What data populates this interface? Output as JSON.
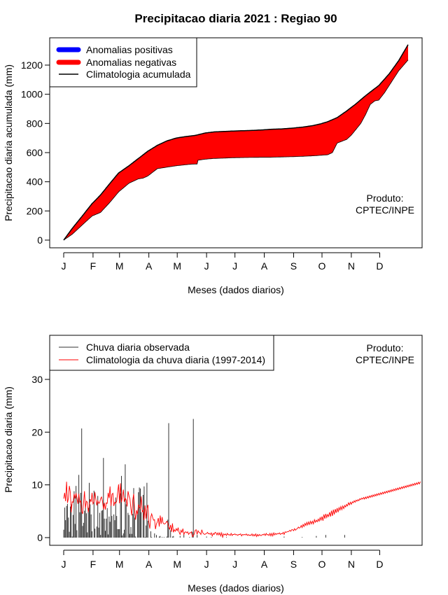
{
  "colors": {
    "positive": "#0000FF",
    "negative": "#FF0000",
    "climatology_line": "#000000",
    "observed_bars": "#333333",
    "climatology_daily": "#FF0000"
  },
  "chart_data": [
    {
      "type": "area",
      "title": "Precipitacao diaria 2021 : Regiao 90",
      "xlabel": "Meses (dados diarios)",
      "ylabel": "Precipitacao diaria acumulada (mm)",
      "xlim": [
        1,
        365
      ],
      "ylim": [
        0,
        1350
      ],
      "yticks": [
        0,
        200,
        400,
        600,
        800,
        1000,
        1200
      ],
      "ytick_labels": [
        "0",
        "200",
        "400",
        "600",
        "800",
        "1000",
        "1200"
      ],
      "month_labels": [
        "J",
        "F",
        "M",
        "A",
        "M",
        "J",
        "J",
        "A",
        "S",
        "O",
        "N",
        "D"
      ],
      "month_days": [
        1,
        32,
        60,
        91,
        121,
        152,
        182,
        213,
        244,
        274,
        305,
        335
      ],
      "legend": {
        "position": "top-left",
        "entries": [
          "Anomalias positivas",
          "Anomalias negativas",
          "Climatologia acumulada"
        ]
      },
      "annotation": [
        "Produto:",
        "CPTEC/INPE"
      ],
      "climatology_cumulative": {
        "x": [
          1,
          10,
          20,
          31,
          40,
          50,
          59,
          70,
          80,
          90,
          100,
          110,
          120,
          130,
          140,
          151,
          160,
          170,
          181,
          190,
          200,
          212,
          220,
          230,
          243,
          255,
          265,
          273,
          280,
          290,
          300,
          310,
          320,
          334,
          345,
          355,
          365
        ],
        "y": [
          0,
          80,
          160,
          250,
          310,
          390,
          460,
          510,
          560,
          610,
          650,
          680,
          700,
          710,
          718,
          735,
          742,
          745,
          748,
          750,
          752,
          756,
          760,
          762,
          768,
          776,
          786,
          798,
          812,
          840,
          885,
          935,
          990,
          1060,
          1140,
          1230,
          1340
        ]
      },
      "observed_cumulative": {
        "x": [
          1,
          10,
          20,
          31,
          40,
          50,
          59,
          70,
          80,
          85,
          90,
          100,
          110,
          120,
          135,
          142,
          143,
          151,
          160,
          170,
          181,
          190,
          200,
          212,
          220,
          230,
          243,
          255,
          265,
          273,
          280,
          285,
          290,
          300,
          305,
          315,
          320,
          325,
          330,
          334,
          340,
          345,
          355,
          365
        ],
        "y": [
          0,
          40,
          100,
          165,
          190,
          260,
          330,
          390,
          420,
          425,
          440,
          490,
          500,
          510,
          520,
          522,
          548,
          555,
          560,
          562,
          565,
          566,
          567,
          568,
          568,
          570,
          572,
          575,
          578,
          582,
          585,
          600,
          665,
          690,
          720,
          800,
          860,
          930,
          955,
          960,
          1010,
          1060,
          1160,
          1235
        ]
      }
    },
    {
      "type": "bar",
      "xlabel": "Meses (dados diarios)",
      "ylabel": "Precipitacao diaria (mm)",
      "xlim": [
        1,
        365
      ],
      "ylim": [
        0,
        35
      ],
      "yticks": [
        0,
        10,
        20,
        30
      ],
      "ytick_labels": [
        "0",
        "10",
        "20",
        "30"
      ],
      "month_labels": [
        "J",
        "F",
        "M",
        "A",
        "M",
        "J",
        "J",
        "A",
        "S",
        "O",
        "N",
        "D"
      ],
      "month_days": [
        1,
        32,
        60,
        91,
        121,
        152,
        182,
        213,
        244,
        274,
        305,
        335
      ],
      "legend": {
        "position": "top-left",
        "entries": [
          "Chuva diaria observada",
          "Climatologia da chuva diaria (1997-2014)"
        ]
      },
      "annotation": [
        "Produto:",
        "CPTEC/INPE"
      ],
      "series": [
        {
          "name": "Chuva diaria observada",
          "type": "bar",
          "values": [
            1.5,
            5.7,
            3.3,
            6.0,
            6.4,
            3.8,
            1.1,
            5.9,
            6.3,
            0.2,
            4.3,
            8.8,
            2.6,
            9.8,
            1.4,
            0.0,
            11.9,
            4.8,
            8.5,
            20.7,
            2.2,
            2.8,
            5.1,
            6.2,
            4.6,
            1.0,
            5.6,
            10.4,
            6.3,
            4.4,
            1.2,
            0.0,
            8.9,
            1.7,
            0.0,
            2.1,
            7.9,
            1.9,
            4.7,
            0.5,
            5.1,
            5.2,
            15.1,
            3.6,
            1.3,
            3.6,
            5.6,
            0.6,
            4.0,
            3.0,
            6.6,
            4.1,
            0.0,
            4.4,
            3.3,
            7.6,
            4.1,
            1.6,
            1.6,
            1.6,
            8.4,
            11.7,
            0.4,
            0.8,
            1.5,
            13.9,
            6.3,
            0.0,
            4.7,
            4.3,
            0.7,
            2.0,
            0.7,
            4.5,
            9.4,
            3.8,
            0.2,
            0.0,
            4.4,
            8.6,
            9.5,
            9.3,
            4.8,
            0.0,
            8.1,
            9.7,
            0.1,
            2.3,
            10.4,
            3.2,
            0.0,
            0.0,
            1.2,
            0.1,
            0.0,
            0.0,
            0.8,
            0.0,
            0.5,
            0.0,
            0.0,
            0.2,
            0.3,
            0.0,
            0.1,
            0.0,
            0.1,
            0.0,
            0.0,
            0.2,
            3.4,
            21.7,
            0.0,
            1.4,
            0.0,
            0.2,
            0.3,
            0.0,
            0.0,
            0.0,
            0.0,
            0.0,
            0.0,
            0.3,
            0.0,
            0.0,
            0.0,
            0.6,
            0.0,
            0.0,
            0.0,
            0.0,
            0.0,
            0.1,
            0.0,
            0.0,
            1.1,
            22.5,
            0.0,
            0.0,
            0.0,
            0.5,
            0.0,
            0.0,
            0.0,
            0.0,
            0.0,
            0.0,
            0.0,
            0.0,
            0.0,
            0.2,
            0.0,
            0.0,
            0.0,
            0.0,
            0.1,
            0.0,
            0.0,
            0.0,
            0.0,
            0.0,
            0.0,
            0.0,
            0.0,
            0.0,
            0.0,
            0.0,
            0.4,
            0.0,
            0.0,
            0.0,
            0.1,
            0.0,
            0.0,
            0.0,
            0.0,
            0.0,
            0.0,
            0.0,
            0.0,
            0.0,
            0.0,
            0.0,
            0.0,
            0.0,
            0.0,
            0.0,
            0.0,
            0.0,
            0.0,
            0.0,
            0.0,
            0.0,
            0.0,
            0.0,
            0.0,
            0.0,
            0.0,
            0.0,
            0.0,
            0.0,
            0.0,
            0.0,
            0.0,
            0.0,
            0.0,
            0.0,
            0.0,
            0.0,
            0.0,
            0.0,
            0.0,
            0.0,
            0.0,
            0.0,
            0.0,
            0.0,
            0.0,
            0.0,
            0.0,
            0.0,
            0.0,
            0.0,
            0.0,
            0.0,
            0.0,
            0.0,
            0.0,
            0.0,
            0.0,
            0.0,
            0.0,
            0.2,
            0.0,
            0.0,
            0.0,
            0.0,
            0.0,
            0.0,
            0.0,
            0.0,
            0.0,
            0.0,
            0.0,
            0.0,
            0.0,
            0.0,
            0.0,
            0.0,
            0.0,
            0.0,
            0.1,
            0.0,
            0.0,
            0.0,
            0.0,
            0.0,
            0.0,
            0.0,
            0.0,
            0.0,
            0.0,
            0.0,
            0.0,
            0.0,
            0.0,
            0.3,
            0.0,
            0.0,
            0.0,
            0.0,
            0.0,
            0.0,
            0.0,
            0.0,
            0.0,
            0.5,
            0.0,
            0.0,
            0.0,
            0.0,
            0.0,
            0.0,
            0.0,
            0.0,
            0.0,
            0.0,
            0.0,
            0.0,
            0.0,
            0.0,
            0.0,
            0.0,
            0.0,
            0.0,
            0.0,
            0.5,
            0.0,
            0.0,
            0.0,
            0.0,
            0.0,
            0.0,
            0.0,
            0.0,
            0.0,
            0.0,
            0.0,
            0.0,
            0.0,
            0.0,
            0.0,
            0.0,
            0.0,
            0.0,
            0.0,
            0.0,
            0.0,
            0.0,
            0.0,
            0.0,
            0.0,
            0.0,
            0.0,
            0.0,
            0.0,
            0.0,
            0.0,
            0.0,
            0.0,
            0.0,
            0.0,
            0.0,
            0.0,
            0.0,
            0.0,
            0.0,
            0.0,
            0.0,
            0.0,
            0.0,
            0.0,
            0.0,
            0.0,
            0.0,
            0.0,
            0.0,
            0.0,
            0.0,
            0.0,
            0.0,
            0.0,
            0.0,
            0.0,
            0.0,
            0.0,
            0.0,
            0.0,
            0.0,
            0.0,
            0.0,
            0.0,
            0.0,
            0.0,
            0.0,
            0.0,
            0.0,
            0.0,
            0.0,
            0.0,
            0.0,
            0.0,
            0.0,
            0.0,
            0.0,
            0.0
          ]
        },
        {
          "name": "Climatologia da chuva diaria (1997-2014)",
          "type": "line",
          "values": [
            7.4,
            8.5,
            6.9,
            10.6,
            6.6,
            7.5,
            9.8,
            8.6,
            4.8,
            6.8,
            6.7,
            8.3,
            7.4,
            8.4,
            7.5,
            6.4,
            8.3,
            6.7,
            7.0,
            5.0,
            4.5,
            6.6,
            8.8,
            5.6,
            6.9,
            6.7,
            4.8,
            6.0,
            7.3,
            6.8,
            8.5,
            6.4,
            6.8,
            8.6,
            7.2,
            6.1,
            7.0,
            6.5,
            6.6,
            7.4,
            7.7,
            6.9,
            5.4,
            6.6,
            5.3,
            6.6,
            6.5,
            8.5,
            7.5,
            9.7,
            6.0,
            8.2,
            8.4,
            6.0,
            6.7,
            6.5,
            6.9,
            8.5,
            10.1,
            6.5,
            10.3,
            6.7,
            7.6,
            9.1,
            6.8,
            7.5,
            7.2,
            5.9,
            8.8,
            7.9,
            7.4,
            5.5,
            4.2,
            7.2,
            8.3,
            5.0,
            3.4,
            5.2,
            4.4,
            6.2,
            5.9,
            5.5,
            7.8,
            4.9,
            5.2,
            3.3,
            6.1,
            3.6,
            5.5,
            6.2,
            2.9,
            1.7,
            3.9,
            4.5,
            3.8,
            3.3,
            3.4,
            1.6,
            2.6,
            3.0,
            3.7,
            2.1,
            4.2,
            2.6,
            3.9,
            2.8,
            2.6,
            2.6,
            2.8,
            3.1,
            2.8,
            2.0,
            1.6,
            2.4,
            1.1,
            2.7,
            1.0,
            1.5,
            1.2,
            1.7,
            1.3,
            1.9,
            1.0,
            0.6,
            1.4,
            1.0,
            1.7,
            0.6,
            1.0,
            1.1,
            0.9,
            1.1,
            0.6,
            0.9,
            0.9,
            1.1,
            0.2,
            0.3,
            0.7,
            1.4,
            1.5,
            0.6,
            1.3,
            1.0,
            0.9,
            0.6,
            1.5,
            0.9,
            0.7,
            0.6,
            0.7,
            0.8,
            1.0,
            0.7,
            0.8,
            0.6,
            0.9,
            0.3,
            0.8,
            0.6,
            1.0,
            0.9,
            0.5,
            0.9,
            0.5,
            0.9,
            0.3,
            0.9,
            0.1,
            0.7,
            0.5,
            0.7,
            0.4,
            0.8,
            0.5,
            0.6,
            0.4,
            0.8,
            0.4,
            0.6,
            0.6,
            0.7,
            0.5,
            0.6,
            0.4,
            0.6,
            0.6,
            0.7,
            0.3,
            0.6,
            0.5,
            0.6,
            0.5,
            0.7,
            0.4,
            0.6,
            0.4,
            0.5,
            0.4,
            0.7,
            0.3,
            0.6,
            0.3,
            0.7,
            0.2,
            0.6,
            0.3,
            0.6,
            0.4,
            0.4,
            0.6,
            0.5,
            0.7,
            0.4,
            0.8,
            0.5,
            0.6,
            0.4,
            0.8,
            0.3,
            0.8,
            0.3,
            0.9,
            0.5,
            0.8,
            0.6,
            0.8,
            0.7,
            0.9,
            0.6,
            0.8,
            0.7,
            1.0,
            0.6,
            1.1,
            1.0,
            1.1,
            1.1,
            1.2,
            1.4,
            1.2,
            1.5,
            1.5,
            1.3,
            1.7,
            1.4,
            1.6,
            1.7,
            2.0,
            1.8,
            1.9,
            2.3,
            1.9,
            2.5,
            2.1,
            2.7,
            2.3,
            2.9,
            2.4,
            3.0,
            2.5,
            3.1,
            2.6,
            3.1,
            2.6,
            3.4,
            2.9,
            3.3,
            3.0,
            3.5,
            3.1,
            3.8,
            3.3,
            4.0,
            3.2,
            4.4,
            3.6,
            4.5,
            3.8,
            4.4,
            4.0,
            4.8,
            4.0,
            5.1,
            4.1,
            5.3,
            4.4,
            5.4,
            4.7,
            5.6,
            4.8,
            5.7,
            5.2,
            5.9,
            5.3,
            6.0,
            5.5,
            6.1,
            5.8,
            6.3,
            6.0,
            6.6,
            6.2,
            6.7,
            6.3,
            6.8,
            6.6,
            7.0,
            6.7,
            7.1,
            6.9,
            7.2,
            7.0,
            7.4,
            7.2,
            7.5,
            7.3,
            7.6,
            7.3,
            7.7,
            7.4,
            7.8,
            7.5,
            7.9,
            7.6,
            8.0,
            7.7,
            8.1,
            7.8,
            8.2,
            7.9,
            8.3,
            8.0,
            8.4,
            8.1,
            8.5,
            8.2,
            8.6,
            8.3,
            8.7,
            8.4,
            8.8,
            8.5,
            8.9,
            8.6,
            9.0,
            8.7,
            9.1,
            8.8,
            9.2,
            8.9,
            9.3,
            9.0,
            9.4,
            9.1,
            9.5,
            9.2,
            9.6,
            9.3,
            9.7,
            9.4,
            9.8,
            9.5,
            9.9,
            9.6,
            10.0,
            9.7,
            10.1,
            9.8,
            10.2,
            9.9,
            10.3,
            10.0,
            10.4,
            10.1,
            10.5,
            10.2,
            10.6
          ]
        }
      ]
    }
  ]
}
